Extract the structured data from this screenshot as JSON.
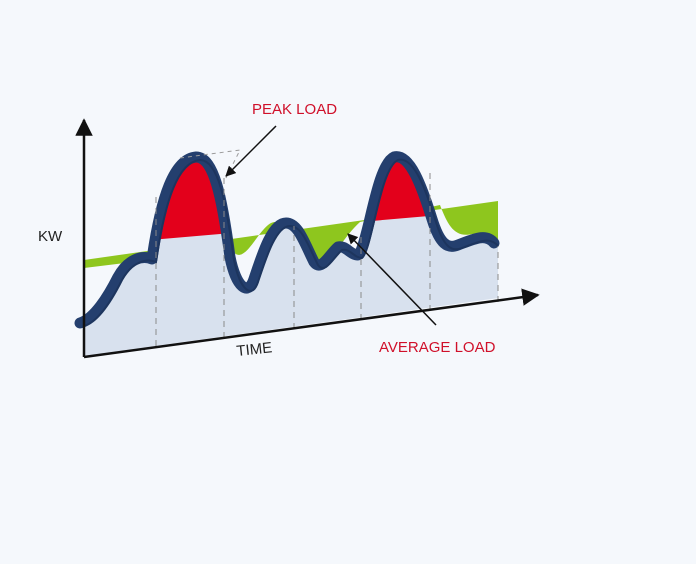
{
  "labels": {
    "y_axis": "KW",
    "x_axis": "TIME",
    "peak": "PEAK LOAD",
    "average": "AVERAGE LOAD"
  },
  "colors": {
    "background": "#f5f8fc",
    "axis": "#111111",
    "load_curve": "#243f6e",
    "base_fill": "#d8e1ee",
    "peak_fill": "#e3001b",
    "valley_fill": "#8ec61e",
    "annotation_text": "#d0102a",
    "guide_line": "#8a8a8a"
  }
}
